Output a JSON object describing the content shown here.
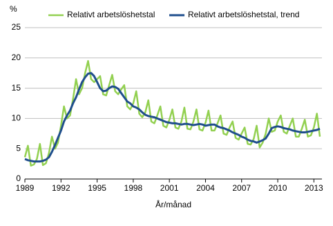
{
  "chart_data": {
    "type": "line",
    "y_label": "%",
    "x_label": "År/månad",
    "x": [
      1989,
      1989.25,
      1989.5,
      1989.75,
      1990,
      1990.25,
      1990.5,
      1990.75,
      1991,
      1991.25,
      1991.5,
      1991.75,
      1992,
      1992.25,
      1992.5,
      1992.75,
      1993,
      1993.25,
      1993.5,
      1993.75,
      1994,
      1994.25,
      1994.5,
      1994.75,
      1995,
      1995.25,
      1995.5,
      1995.75,
      1996,
      1996.25,
      1996.5,
      1996.75,
      1997,
      1997.25,
      1997.5,
      1997.75,
      1998,
      1998.25,
      1998.5,
      1998.75,
      1999,
      1999.25,
      1999.5,
      1999.75,
      2000,
      2000.25,
      2000.5,
      2000.75,
      2001,
      2001.25,
      2001.5,
      2001.75,
      2002,
      2002.25,
      2002.5,
      2002.75,
      2003,
      2003.25,
      2003.5,
      2003.75,
      2004,
      2004.25,
      2004.5,
      2004.75,
      2005,
      2005.25,
      2005.5,
      2005.75,
      2006,
      2006.25,
      2006.5,
      2006.75,
      2007,
      2007.25,
      2007.5,
      2007.75,
      2008,
      2008.25,
      2008.5,
      2008.75,
      2009,
      2009.25,
      2009.5,
      2009.75,
      2010,
      2010.25,
      2010.5,
      2010.75,
      2011,
      2011.25,
      2011.5,
      2011.75,
      2012,
      2012.25,
      2012.5,
      2012.75,
      2013,
      2013.25,
      2013.5
    ],
    "series": [
      {
        "name": "Relativt arbetslöshetstal",
        "color": "#92d050",
        "width": 2.5,
        "values": [
          3.6,
          5.5,
          2.2,
          2.4,
          3.3,
          5.8,
          2.3,
          2.6,
          4.3,
          7.0,
          5.0,
          6.0,
          8.8,
          12.0,
          10.0,
          10.5,
          13.2,
          16.5,
          14.0,
          15.0,
          17.5,
          19.5,
          16.5,
          16.0,
          16.5,
          17.0,
          14.0,
          13.8,
          15.5,
          17.2,
          14.5,
          14.0,
          14.8,
          15.5,
          12.0,
          11.5,
          12.5,
          14.5,
          10.8,
          10.2,
          11.0,
          13.0,
          9.5,
          9.2,
          10.5,
          12.0,
          8.8,
          8.5,
          9.8,
          11.5,
          8.5,
          8.3,
          9.5,
          11.8,
          8.3,
          8.2,
          9.5,
          11.5,
          8.2,
          8.0,
          9.3,
          11.3,
          8.0,
          8.0,
          9.2,
          10.5,
          7.5,
          7.3,
          8.5,
          9.5,
          6.8,
          6.5,
          7.5,
          8.5,
          5.8,
          5.7,
          6.6,
          8.8,
          5.2,
          6.0,
          7.5,
          10.0,
          7.8,
          8.0,
          9.5,
          10.5,
          7.8,
          7.5,
          8.8,
          10.0,
          7.0,
          7.0,
          8.3,
          9.8,
          7.0,
          7.2,
          8.5,
          10.8,
          7.0
        ]
      },
      {
        "name": "Relativt arbetslöshetstal, trend",
        "color": "#1f4e8c",
        "width": 3,
        "values": [
          3.3,
          3.1,
          3.0,
          2.9,
          2.9,
          2.9,
          3.0,
          3.2,
          3.6,
          4.5,
          5.6,
          6.8,
          8.0,
          9.5,
          10.5,
          11.3,
          12.5,
          13.5,
          14.8,
          16.0,
          16.8,
          17.4,
          17.5,
          17.0,
          16.0,
          15.0,
          14.5,
          14.6,
          15.0,
          15.3,
          15.2,
          14.9,
          14.2,
          13.5,
          12.8,
          12.5,
          12.0,
          11.8,
          11.5,
          11.0,
          10.6,
          10.4,
          10.3,
          10.2,
          10.0,
          9.8,
          9.6,
          9.4,
          9.3,
          9.2,
          9.2,
          9.1,
          9.0,
          9.1,
          9.1,
          9.0,
          8.9,
          9.0,
          9.1,
          9.0,
          8.8,
          8.9,
          9.0,
          9.0,
          8.7,
          8.5,
          8.4,
          8.2,
          8.0,
          7.7,
          7.5,
          7.3,
          7.0,
          6.8,
          6.5,
          6.3,
          6.2,
          6.0,
          6.2,
          6.4,
          6.7,
          7.5,
          8.4,
          8.6,
          8.7,
          8.6,
          8.4,
          8.3,
          8.2,
          8.0,
          7.9,
          7.8,
          7.7,
          7.7,
          7.8,
          7.9,
          8.0,
          8.1,
          8.3
        ]
      }
    ],
    "xlim": [
      1989,
      2013.67
    ],
    "xticks": [
      1989,
      1992,
      1995,
      1998,
      2001,
      2004,
      2007,
      2010,
      2013
    ],
    "ylim": [
      0,
      25
    ],
    "yticks": [
      0,
      5,
      10,
      15,
      20,
      25
    ],
    "grid": true,
    "legend": "top"
  }
}
